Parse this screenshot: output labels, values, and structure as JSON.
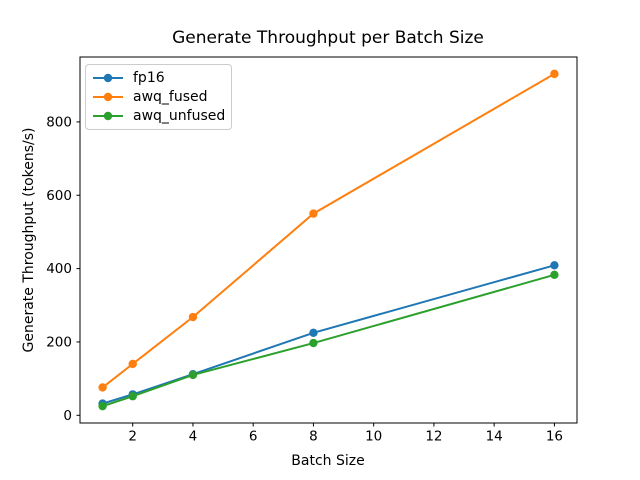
{
  "chart_data": {
    "type": "line",
    "title": "Generate Throughput per Batch Size",
    "xlabel": "Batch Size",
    "ylabel": "Generate Throughput (tokens/s)",
    "x": [
      1,
      2,
      4,
      8,
      16
    ],
    "series": [
      {
        "name": "fp16",
        "color": "#1f77b4",
        "values": [
          32,
          57,
          112,
          225,
          409
        ]
      },
      {
        "name": "awq_fused",
        "color": "#ff7f0e",
        "values": [
          76,
          140,
          268,
          550,
          931
        ]
      },
      {
        "name": "awq_unfused",
        "color": "#2ca02c",
        "values": [
          25,
          52,
          110,
          197,
          383
        ]
      }
    ],
    "xticks": [
      2,
      4,
      6,
      8,
      10,
      12,
      14,
      16
    ],
    "yticks": [
      0,
      200,
      400,
      600,
      800
    ],
    "xlim": [
      0.25,
      16.75
    ],
    "ylim": [
      -21,
      977
    ],
    "grid": false,
    "legend": {
      "position": "upper-left",
      "entries": [
        "fp16",
        "awq_fused",
        "awq_unfused"
      ]
    },
    "marker": "circle",
    "axis_color": "#000000",
    "background": "#ffffff"
  }
}
